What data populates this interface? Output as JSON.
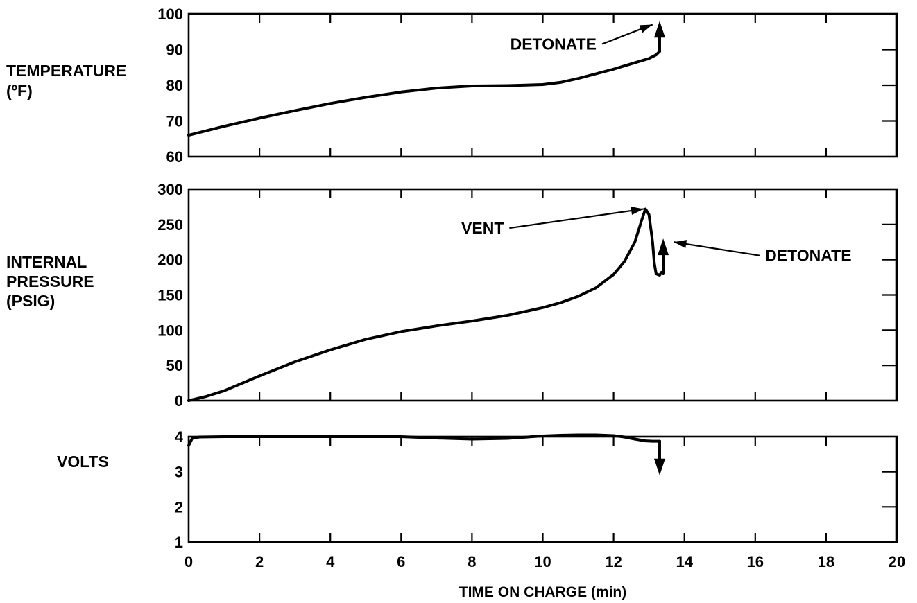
{
  "chart_data": [
    {
      "type": "line",
      "ylabel": "TEMPERATURE (ºF)",
      "ylabel_lines": [
        "TEMPERATURE",
        "(ºF)"
      ],
      "ylim": [
        60,
        100
      ],
      "yticks": [
        60,
        70,
        80,
        90,
        100
      ],
      "xlim": [
        0,
        20
      ],
      "series": [
        {
          "x": [
            0,
            1,
            2,
            3,
            4,
            5,
            6,
            7,
            8,
            9,
            10,
            10.5,
            11,
            11.5,
            12,
            12.5,
            13,
            13.2,
            13.3
          ],
          "y": [
            66,
            68.5,
            70.8,
            72.9,
            74.9,
            76.6,
            78.1,
            79.2,
            79.8,
            79.9,
            80.2,
            80.8,
            81.9,
            83.2,
            84.5,
            86,
            87.5,
            88.5,
            89.5
          ]
        }
      ],
      "end_arrow": {
        "from": [
          13.3,
          89.5
        ],
        "to": [
          13.3,
          98
        ],
        "direction": "up"
      },
      "annotations": [
        {
          "text": "DETONATE",
          "text_x": 10.3,
          "text_y": 90,
          "point_x": 13.1,
          "point_y": 97
        }
      ]
    },
    {
      "type": "line",
      "ylabel": "INTERNAL PRESSURE (PSIG)",
      "ylabel_lines": [
        "INTERNAL",
        "PRESSURE",
        "(PSIG)"
      ],
      "ylim": [
        0,
        300
      ],
      "yticks": [
        0,
        50,
        100,
        150,
        200,
        250,
        300
      ],
      "xlim": [
        0,
        20
      ],
      "series": [
        {
          "x": [
            0,
            0.5,
            1,
            2,
            3,
            4,
            5,
            6,
            7,
            8,
            9,
            10,
            10.5,
            11,
            11.5,
            12,
            12.3,
            12.6,
            12.8,
            12.9,
            13,
            13.1,
            13.15,
            13.2,
            13.3,
            13.35
          ],
          "y": [
            0,
            6,
            14,
            35,
            55,
            72,
            87,
            98,
            106,
            113,
            121,
            132,
            139,
            148,
            160,
            179,
            197,
            225,
            257,
            272,
            264,
            225,
            195,
            180,
            178,
            182
          ]
        }
      ],
      "end_arrow": {
        "from": [
          13.4,
          180
        ],
        "to": [
          13.4,
          230
        ],
        "direction": "up"
      },
      "annotations": [
        {
          "text": "VENT",
          "text_x": 8.3,
          "text_y": 237,
          "point_x": 12.85,
          "point_y": 272
        },
        {
          "text": "DETONATE",
          "text_x": 17.5,
          "text_y": 198,
          "point_x": 13.7,
          "point_y": 225
        }
      ]
    },
    {
      "type": "line",
      "ylabel": "VOLTS",
      "ylabel_lines": [
        "VOLTS"
      ],
      "ylim": [
        1,
        4
      ],
      "yticks": [
        1,
        2,
        3,
        4
      ],
      "xlim": [
        0,
        20
      ],
      "xlabel": "TIME ON CHARGE (min)",
      "xticks": [
        0,
        2,
        4,
        6,
        8,
        10,
        12,
        14,
        16,
        18,
        20
      ],
      "series": [
        {
          "x": [
            0,
            0.1,
            0.3,
            1,
            2,
            3,
            4,
            5,
            6,
            7,
            8,
            9,
            10,
            10.5,
            11,
            11.5,
            12,
            12.3,
            12.6,
            12.9,
            13.1,
            13.3
          ],
          "y": [
            3.75,
            3.95,
            3.99,
            4,
            4,
            4,
            4,
            4,
            4,
            3.96,
            3.93,
            3.95,
            4.02,
            4.04,
            4.05,
            4.05,
            4.03,
            3.99,
            3.93,
            3.88,
            3.87,
            3.87
          ]
        }
      ],
      "end_arrow": {
        "from": [
          13.3,
          3.87
        ],
        "to": [
          13.3,
          2.9
        ],
        "direction": "down"
      },
      "annotations": []
    }
  ]
}
